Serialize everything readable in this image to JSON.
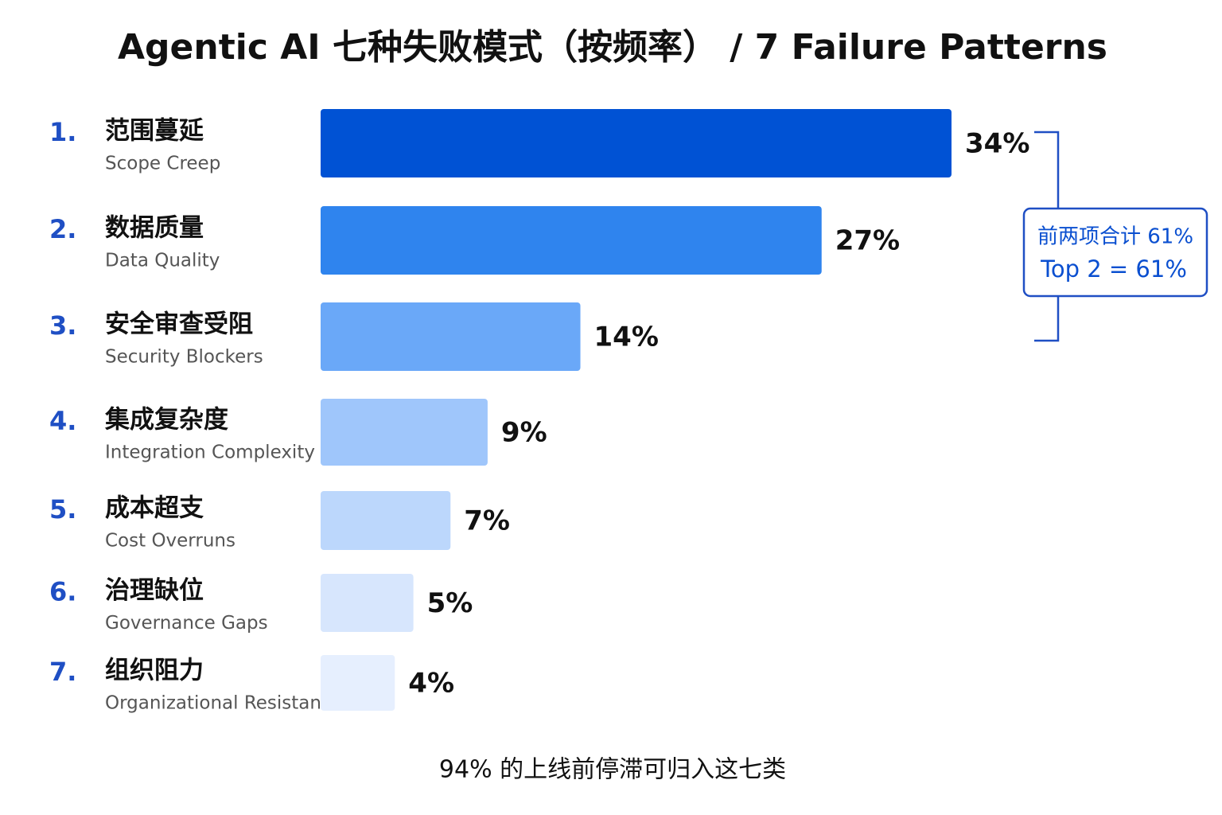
{
  "chart_data": {
    "type": "bar",
    "orientation": "horizontal",
    "title": "Agentic AI 七种失败模式（按频率） / 7 Failure Patterns",
    "ranks": [
      "1.",
      "2.",
      "3.",
      "4.",
      "5.",
      "6.",
      "7."
    ],
    "categories": [
      "范围蔓延",
      "数据质量",
      "安全审查受阻",
      "集成复杂度",
      "成本超支",
      "治理缺位",
      "组织阻力"
    ],
    "categories_en": [
      "Scope Creep",
      "Data Quality",
      "Security Blockers",
      "Integration Complexity",
      "Cost Overruns",
      "Governance Gaps",
      "Organizational Resistance"
    ],
    "values": [
      34,
      27,
      14,
      9,
      7,
      5,
      4
    ],
    "value_labels": [
      "34%",
      "27%",
      "14%",
      "9%",
      "7%",
      "5%",
      "4%"
    ],
    "colors": [
      "#0052d4",
      "#2f84ee",
      "#6aa8f8",
      "#9fc6fb",
      "#bcd7fc",
      "#d7e6fd",
      "#e6effe"
    ],
    "annotation": [
      "前两项合计 61%",
      "Top 2 = 61%"
    ],
    "footer": "94% 的上线前停滞可归入这七类"
  }
}
